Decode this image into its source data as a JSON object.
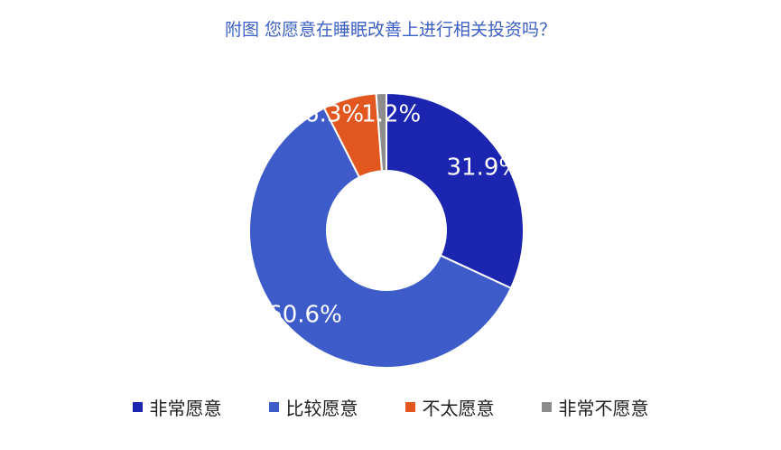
{
  "chart_data": {
    "type": "pie",
    "title": "附图 您愿意在睡眠改善上进行相关投资吗？",
    "categories": [
      "非常愿意",
      "比较愿意",
      "不太愿意",
      "非常不愿意"
    ],
    "values": [
      31.9,
      60.6,
      6.3,
      1.2
    ],
    "labels": [
      "31.9%",
      "60.6%",
      "6.3%",
      "1.2%"
    ],
    "colors": [
      "#1b25b0",
      "#3d5cc9",
      "#e2561f",
      "#8c8c8c"
    ],
    "donut": true,
    "legend_position": "bottom"
  }
}
